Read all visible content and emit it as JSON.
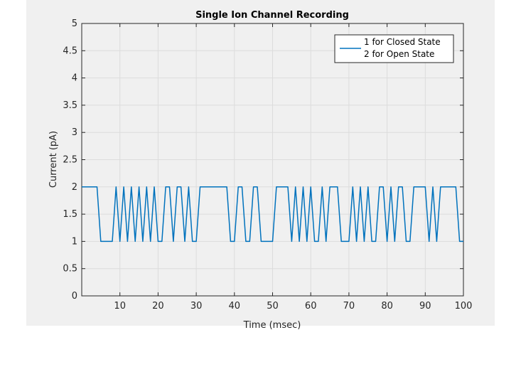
{
  "chart_data": {
    "type": "line",
    "title": "Single Ion Channel Recording",
    "xlabel": "Time (msec)",
    "ylabel": "Current (pA)",
    "xlim": [
      0,
      100
    ],
    "ylim": [
      0,
      5
    ],
    "xticks": [
      10,
      20,
      30,
      40,
      50,
      60,
      70,
      80,
      90,
      100
    ],
    "yticks": [
      0,
      0.5,
      1,
      1.5,
      2,
      2.5,
      3,
      3.5,
      4,
      4.5,
      5
    ],
    "xtick_labels": [
      "10",
      "20",
      "30",
      "40",
      "50",
      "60",
      "70",
      "80",
      "90",
      "100"
    ],
    "ytick_labels": [
      "0",
      "0.5",
      "1",
      "1.5",
      "2",
      "2.5",
      "3",
      "3.5",
      "4",
      "4.5",
      "5"
    ],
    "grid": true,
    "legend_position": "top-right",
    "legend_lines": [
      "1 for Closed State",
      "2 for Open State"
    ],
    "series_color": "#0072bd",
    "series": [
      {
        "x": [
          0,
          4,
          5,
          8,
          9,
          10,
          11,
          12,
          13,
          14,
          15,
          16,
          17,
          18,
          19,
          20,
          21,
          22,
          23,
          24,
          25,
          26,
          27,
          28,
          29,
          30,
          31,
          32,
          33,
          34,
          35,
          36,
          37,
          38,
          39,
          40,
          41,
          42,
          43,
          44,
          45,
          46,
          47,
          48,
          49,
          50,
          51,
          52,
          53,
          54,
          55,
          56,
          57,
          58,
          59,
          60,
          61,
          62,
          63,
          64,
          65,
          66,
          67,
          68,
          69,
          70,
          71,
          72,
          73,
          74,
          75,
          76,
          77,
          78,
          79,
          80,
          81,
          82,
          83,
          84,
          85,
          86,
          87,
          88,
          89,
          90,
          91,
          92,
          93,
          94,
          95,
          96,
          97,
          98,
          99,
          100
        ],
        "y": [
          2,
          2,
          1,
          1,
          2,
          1,
          2,
          1,
          2,
          1,
          2,
          1,
          2,
          1,
          2,
          1,
          1,
          2,
          2,
          1,
          2,
          2,
          1,
          2,
          1,
          1,
          2,
          2,
          2,
          2,
          2,
          2,
          2,
          2,
          1,
          1,
          2,
          2,
          1,
          1,
          2,
          2,
          1,
          1,
          1,
          1,
          2,
          2,
          2,
          2,
          1,
          2,
          1,
          2,
          1,
          2,
          1,
          1,
          2,
          1,
          2,
          2,
          2,
          1,
          1,
          1,
          2,
          1,
          2,
          1,
          2,
          1,
          1,
          2,
          2,
          1,
          2,
          1,
          2,
          2,
          1,
          1,
          2,
          2,
          2,
          2,
          1,
          2,
          1,
          2,
          2,
          2,
          2,
          2,
          1,
          1
        ]
      }
    ]
  }
}
